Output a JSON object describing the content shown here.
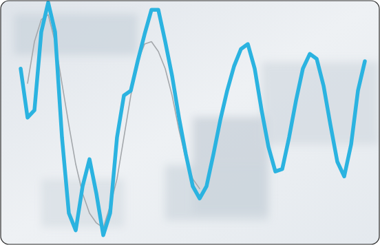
{
  "chart_data": {
    "type": "line",
    "x": [
      30,
      40,
      50,
      60,
      70,
      80,
      90,
      100,
      110,
      120,
      130,
      140,
      150,
      160,
      170,
      180,
      190,
      200,
      210,
      220,
      230,
      240,
      250,
      260,
      270,
      280,
      290,
      300,
      310,
      320,
      330,
      340,
      350,
      360,
      370,
      380,
      390,
      400,
      410,
      420,
      430,
      440,
      450,
      460,
      470,
      480,
      490,
      500,
      510,
      520,
      530
    ],
    "series": [
      {
        "color": "#2bb3e0",
        "line_style": "solid",
        "values": [
          72,
          52,
          55,
          87,
          99,
          87,
          44,
          13,
          6,
          24,
          35,
          21,
          4,
          13,
          44,
          61,
          63,
          75,
          86,
          96,
          96,
          83,
          69,
          52,
          37,
          24,
          19,
          24,
          37,
          51,
          63,
          73,
          80,
          82,
          72,
          55,
          40,
          30,
          31,
          44,
          59,
          72,
          78,
          76,
          65,
          49,
          34,
          28,
          41,
          63,
          75
        ]
      },
      {
        "color": "#a3a7ab",
        "line_style": "solid",
        "values": [
          null,
          66,
          83,
          92,
          94,
          83,
          66,
          49,
          33,
          21,
          13,
          9,
          7,
          16,
          27,
          44,
          61,
          75,
          82,
          83,
          79,
          72,
          61,
          47,
          35,
          27,
          23,
          null,
          null,
          null,
          null,
          null,
          null,
          null,
          null,
          null,
          null,
          null,
          null,
          null,
          null,
          null,
          null,
          null,
          null,
          null,
          null,
          null,
          null,
          null,
          null
        ]
      }
    ],
    "xlim": [
      0,
      552
    ],
    "ylim": [
      0,
      100
    ],
    "xticks": [],
    "yticks": [],
    "grid": false,
    "tick_labels": false
  }
}
